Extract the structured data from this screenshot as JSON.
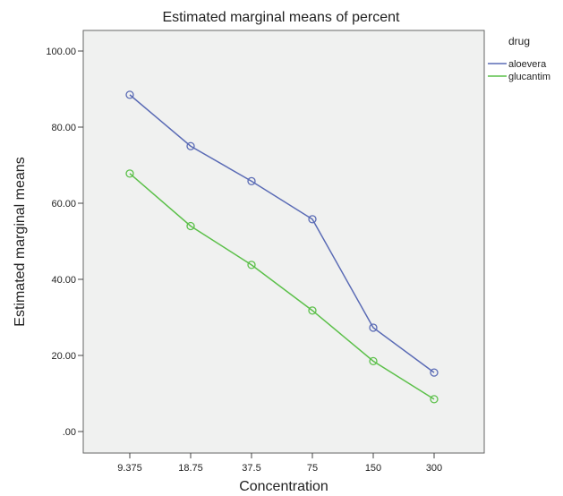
{
  "chart_data": {
    "type": "line",
    "title": "Estimated marginal means of percent",
    "xlabel": "Concentration",
    "ylabel": "Estimated marginal means",
    "categories": [
      "9.375",
      "18.75",
      "37.5",
      "75",
      "150",
      "300"
    ],
    "yticks": [
      ".00",
      "20.00",
      "40.00",
      "60.00",
      "80.00",
      "100.00"
    ],
    "ylim": [
      0,
      100
    ],
    "legend": {
      "title": "drug",
      "placement": "right"
    },
    "series": [
      {
        "name": "aloevera",
        "color": "#5a6bb5",
        "values": [
          88.5,
          75.0,
          65.8,
          55.8,
          27.3,
          15.5
        ]
      },
      {
        "name": "glucantim",
        "color": "#5cc04a",
        "values": [
          67.8,
          54.0,
          43.8,
          31.8,
          18.5,
          8.5
        ]
      }
    ],
    "plot_background": "#f0f1f0",
    "grid": false
  }
}
